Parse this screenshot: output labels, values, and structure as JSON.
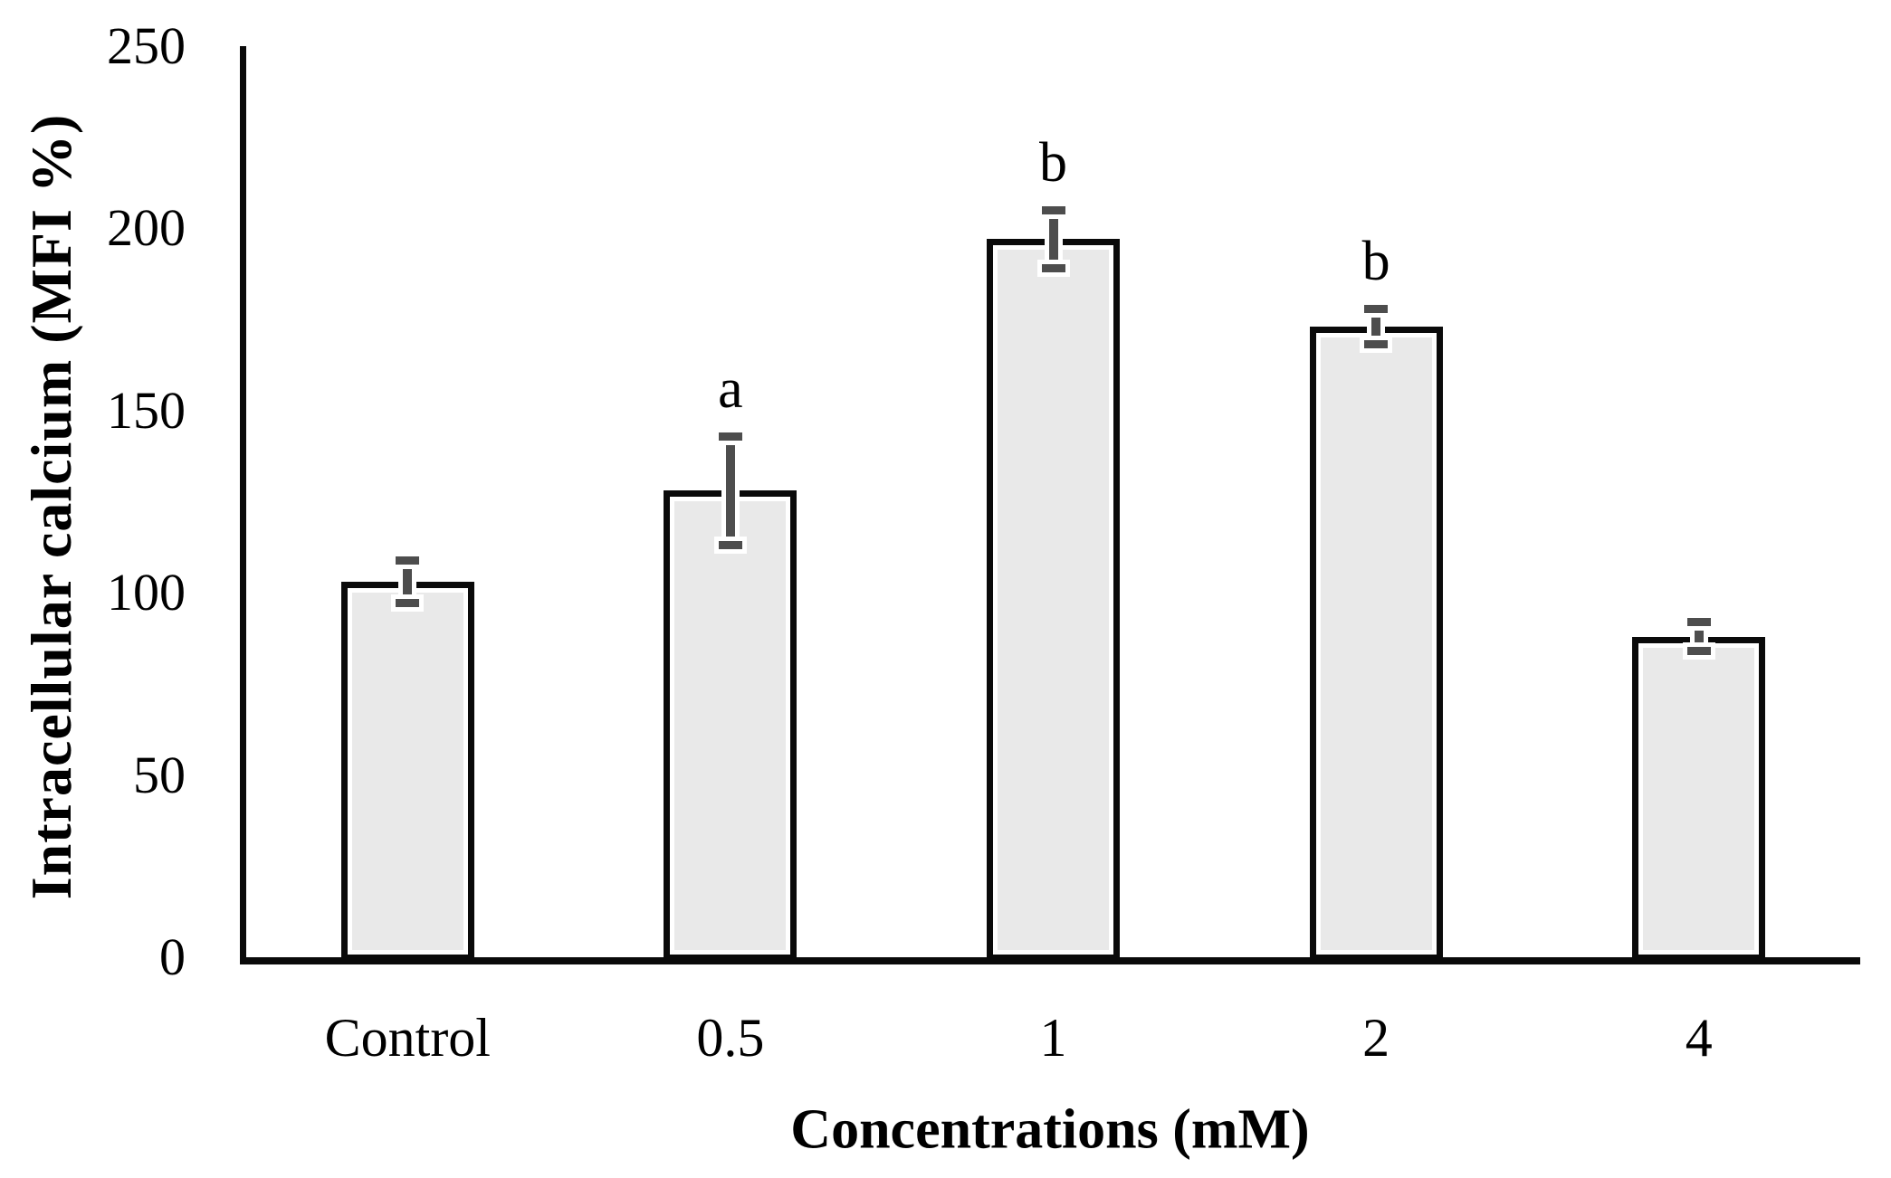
{
  "chart_data": {
    "type": "bar",
    "title": "",
    "categories": [
      "Control",
      "0.5",
      "1",
      "2",
      "4"
    ],
    "values": [
      103,
      128,
      197,
      173,
      88
    ],
    "error_bars": [
      7,
      16,
      9,
      6,
      5
    ],
    "significance_labels": [
      "",
      "a",
      "b",
      "b",
      ""
    ],
    "xlabel": "Concentrations (mM)",
    "ylabel": "Intracellular calcium (MFI %)",
    "ylim": [
      0,
      250
    ],
    "yticks": [
      0,
      50,
      100,
      150,
      200,
      250
    ],
    "grid": false,
    "legend": false,
    "bar_fill": "#e9e9e9",
    "bar_border": "#0a0a0a",
    "error_color": "#4d4d4d",
    "axis_color": "#0a0a0a",
    "text_color": "#000000",
    "background": "#ffffff"
  }
}
